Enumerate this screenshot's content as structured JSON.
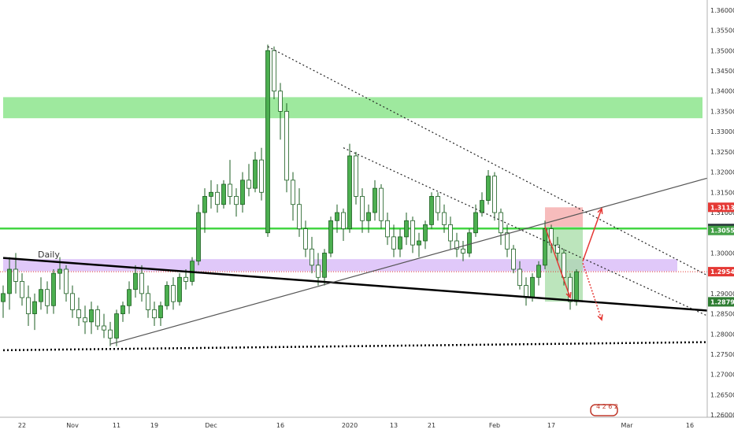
{
  "chart_data": {
    "type": "candlestick",
    "ylim": [
      1.2575,
      1.3625
    ],
    "grid": false,
    "y_ticks": [
      "1.36000",
      "1.35500",
      "1.35000",
      "1.34500",
      "1.34000",
      "1.33500",
      "1.33000",
      "1.32500",
      "1.32000",
      "1.31500",
      "1.31000",
      "1.30500",
      "1.30000",
      "1.29500",
      "1.29000",
      "1.28500",
      "1.28000",
      "1.27500",
      "1.27000",
      "1.26500",
      "1.26000"
    ],
    "x_ticks": [
      {
        "label": "22",
        "i": 3
      },
      {
        "label": "Nov",
        "i": 11
      },
      {
        "label": "11",
        "i": 18
      },
      {
        "label": "19",
        "i": 24
      },
      {
        "label": "Dec",
        "i": 33
      },
      {
        "label": "16",
        "i": 44
      },
      {
        "label": "2020",
        "i": 55
      },
      {
        "label": "13",
        "i": 62
      },
      {
        "label": "21",
        "i": 68
      },
      {
        "label": "Feb",
        "i": 78
      },
      {
        "label": "17",
        "i": 87
      },
      {
        "label": "Mar",
        "i": 99
      },
      {
        "label": "16",
        "i": 109
      }
    ],
    "annotation": "Daily",
    "price_badges": [
      {
        "label": "1.31130",
        "value": 1.3113,
        "color": "#e53935"
      },
      {
        "label": "1.30606",
        "value": 1.30606,
        "color": "#263238"
      },
      {
        "label": "1.30558",
        "value": 1.30558,
        "color": "#43a047"
      },
      {
        "label": "1.29540",
        "value": 1.2954,
        "color": "#e53935"
      },
      {
        "label": "1.28795",
        "value": 1.28795,
        "color": "#2e7d32"
      }
    ],
    "zones": [
      {
        "kind": "resistance",
        "y_from": 1.3333,
        "y_to": 1.3385,
        "i_from": 0,
        "i_to": 111,
        "color": "#7ee27e"
      },
      {
        "kind": "support",
        "y_from": 1.2955,
        "y_to": 1.2985,
        "i_from": 0,
        "i_to": 107,
        "color": "#d6b6f7"
      },
      {
        "kind": "stop",
        "y_from": 1.3065,
        "y_to": 1.3113,
        "i_from": 86,
        "i_to": 92,
        "color": "#f4a6a6"
      },
      {
        "kind": "target",
        "y_from": 1.288,
        "y_to": 1.3065,
        "i_from": 86,
        "i_to": 92,
        "color": "#a5dca5"
      }
    ],
    "horizontal_lines": [
      {
        "value": 1.30606,
        "color": "#43d643"
      },
      {
        "value": 1.2954,
        "color": "#e53935",
        "dotted": true
      }
    ],
    "trendlines": [
      {
        "name": "descending support",
        "from": [
          0,
          1.2988
        ],
        "to": [
          112,
          1.2858
        ],
        "color": "#000000",
        "style": "solid-thick"
      },
      {
        "name": "rising trendline",
        "from": [
          17,
          1.2775
        ],
        "to": [
          112,
          1.3185
        ],
        "color": "#555555",
        "style": "solid"
      },
      {
        "name": "upper descending",
        "from": [
          42,
          1.351
        ],
        "to": [
          112,
          1.2945
        ],
        "color": "#222222",
        "style": "dotted"
      },
      {
        "name": "inner descending",
        "from": [
          54,
          1.326
        ],
        "to": [
          112,
          1.2845
        ],
        "color": "#222222",
        "style": "dotted"
      },
      {
        "name": "base",
        "from": [
          0,
          1.276
        ],
        "to": [
          112,
          1.278
        ],
        "color": "#000000",
        "style": "dotted-thick"
      }
    ],
    "arrows": [
      {
        "from": [
          86,
          1.3065
        ],
        "to": [
          90,
          1.289
        ],
        "color": "#e53935",
        "style": "solid"
      },
      {
        "from": [
          92,
          1.298
        ],
        "to": [
          95,
          1.311
        ],
        "color": "#e53935",
        "style": "solid"
      },
      {
        "from": [
          92,
          1.2975
        ],
        "to": [
          95,
          1.2835
        ],
        "color": "#e53935",
        "style": "dotted"
      }
    ],
    "candles": [
      [
        1.288,
        1.292,
        1.284,
        1.29
      ],
      [
        1.29,
        1.299,
        1.286,
        1.296
      ],
      [
        1.296,
        1.3,
        1.29,
        1.293
      ],
      [
        1.293,
        1.295,
        1.287,
        1.289
      ],
      [
        1.289,
        1.292,
        1.282,
        1.285
      ],
      [
        1.285,
        1.29,
        1.281,
        1.288
      ],
      [
        1.288,
        1.294,
        1.286,
        1.291
      ],
      [
        1.291,
        1.293,
        1.285,
        1.287
      ],
      [
        1.287,
        1.296,
        1.285,
        1.295
      ],
      [
        1.295,
        1.299,
        1.291,
        1.296
      ],
      [
        1.296,
        1.297,
        1.288,
        1.29
      ],
      [
        1.29,
        1.292,
        1.284,
        1.286
      ],
      [
        1.286,
        1.289,
        1.282,
        1.284
      ],
      [
        1.284,
        1.287,
        1.28,
        1.283
      ],
      [
        1.283,
        1.288,
        1.28,
        1.286
      ],
      [
        1.286,
        1.287,
        1.281,
        1.282
      ],
      [
        1.282,
        1.285,
        1.279,
        1.281
      ],
      [
        1.281,
        1.283,
        1.277,
        1.279
      ],
      [
        1.279,
        1.286,
        1.277,
        1.285
      ],
      [
        1.285,
        1.288,
        1.283,
        1.287
      ],
      [
        1.287,
        1.293,
        1.285,
        1.291
      ],
      [
        1.291,
        1.297,
        1.289,
        1.295
      ],
      [
        1.295,
        1.297,
        1.288,
        1.29
      ],
      [
        1.29,
        1.292,
        1.284,
        1.286
      ],
      [
        1.286,
        1.288,
        1.282,
        1.284
      ],
      [
        1.284,
        1.288,
        1.282,
        1.287
      ],
      [
        1.287,
        1.293,
        1.286,
        1.292
      ],
      [
        1.292,
        1.294,
        1.286,
        1.288
      ],
      [
        1.288,
        1.295,
        1.287,
        1.294
      ],
      [
        1.294,
        1.296,
        1.291,
        1.293
      ],
      [
        1.293,
        1.299,
        1.292,
        1.298
      ],
      [
        1.298,
        1.312,
        1.297,
        1.31
      ],
      [
        1.31,
        1.316,
        1.305,
        1.314
      ],
      [
        1.314,
        1.318,
        1.311,
        1.315
      ],
      [
        1.315,
        1.317,
        1.31,
        1.312
      ],
      [
        1.312,
        1.318,
        1.311,
        1.317
      ],
      [
        1.317,
        1.323,
        1.312,
        1.314
      ],
      [
        1.314,
        1.316,
        1.309,
        1.312
      ],
      [
        1.312,
        1.32,
        1.31,
        1.318
      ],
      [
        1.318,
        1.322,
        1.314,
        1.316
      ],
      [
        1.316,
        1.325,
        1.315,
        1.323
      ],
      [
        1.323,
        1.326,
        1.313,
        1.315
      ],
      [
        1.305,
        1.3515,
        1.304,
        1.35
      ],
      [
        1.35,
        1.351,
        1.338,
        1.34
      ],
      [
        1.34,
        1.342,
        1.328,
        1.335
      ],
      [
        1.335,
        1.337,
        1.315,
        1.318
      ],
      [
        1.318,
        1.32,
        1.308,
        1.312
      ],
      [
        1.312,
        1.316,
        1.304,
        1.306
      ],
      [
        1.306,
        1.308,
        1.299,
        1.301
      ],
      [
        1.301,
        1.304,
        1.295,
        1.297
      ],
      [
        1.297,
        1.3,
        1.292,
        1.294
      ],
      [
        1.294,
        1.301,
        1.292,
        1.3
      ],
      [
        1.3,
        1.309,
        1.299,
        1.308
      ],
      [
        1.308,
        1.312,
        1.305,
        1.31
      ],
      [
        1.31,
        1.311,
        1.303,
        1.306
      ],
      [
        1.306,
        1.327,
        1.305,
        1.324
      ],
      [
        1.324,
        1.325,
        1.312,
        1.314
      ],
      [
        1.314,
        1.316,
        1.305,
        1.308
      ],
      [
        1.308,
        1.312,
        1.305,
        1.31
      ],
      [
        1.31,
        1.318,
        1.308,
        1.316
      ],
      [
        1.316,
        1.317,
        1.306,
        1.308
      ],
      [
        1.308,
        1.31,
        1.302,
        1.304
      ],
      [
        1.304,
        1.307,
        1.299,
        1.301
      ],
      [
        1.301,
        1.306,
        1.299,
        1.304
      ],
      [
        1.304,
        1.31,
        1.302,
        1.308
      ],
      [
        1.308,
        1.309,
        1.3,
        1.302
      ],
      [
        1.302,
        1.305,
        1.299,
        1.303
      ],
      [
        1.303,
        1.308,
        1.301,
        1.307
      ],
      [
        1.307,
        1.315,
        1.306,
        1.314
      ],
      [
        1.314,
        1.315,
        1.308,
        1.31
      ],
      [
        1.31,
        1.312,
        1.305,
        1.307
      ],
      [
        1.307,
        1.309,
        1.301,
        1.303
      ],
      [
        1.303,
        1.305,
        1.299,
        1.301
      ],
      [
        1.301,
        1.303,
        1.298,
        1.3
      ],
      [
        1.3,
        1.306,
        1.299,
        1.305
      ],
      [
        1.305,
        1.312,
        1.304,
        1.31
      ],
      [
        1.31,
        1.315,
        1.309,
        1.313
      ],
      [
        1.313,
        1.3205,
        1.312,
        1.319
      ],
      [
        1.319,
        1.32,
        1.308,
        1.31
      ],
      [
        1.31,
        1.311,
        1.302,
        1.305
      ],
      [
        1.305,
        1.307,
        1.299,
        1.301
      ],
      [
        1.301,
        1.302,
        1.295,
        1.296
      ],
      [
        1.296,
        1.298,
        1.291,
        1.292
      ],
      [
        1.292,
        1.294,
        1.287,
        1.289
      ],
      [
        1.289,
        1.295,
        1.288,
        1.294
      ],
      [
        1.294,
        1.298,
        1.292,
        1.297
      ],
      [
        1.297,
        1.308,
        1.296,
        1.306
      ],
      [
        1.306,
        1.307,
        1.3,
        1.302
      ],
      [
        1.302,
        1.304,
        1.298,
        1.3
      ],
      [
        1.3,
        1.301,
        1.292,
        1.294
      ],
      [
        1.294,
        1.295,
        1.286,
        1.288
      ],
      [
        1.288,
        1.296,
        1.287,
        1.2954
      ]
    ]
  },
  "watermark": {
    "text": "4 2 6 2",
    "color": "#c0392b"
  }
}
